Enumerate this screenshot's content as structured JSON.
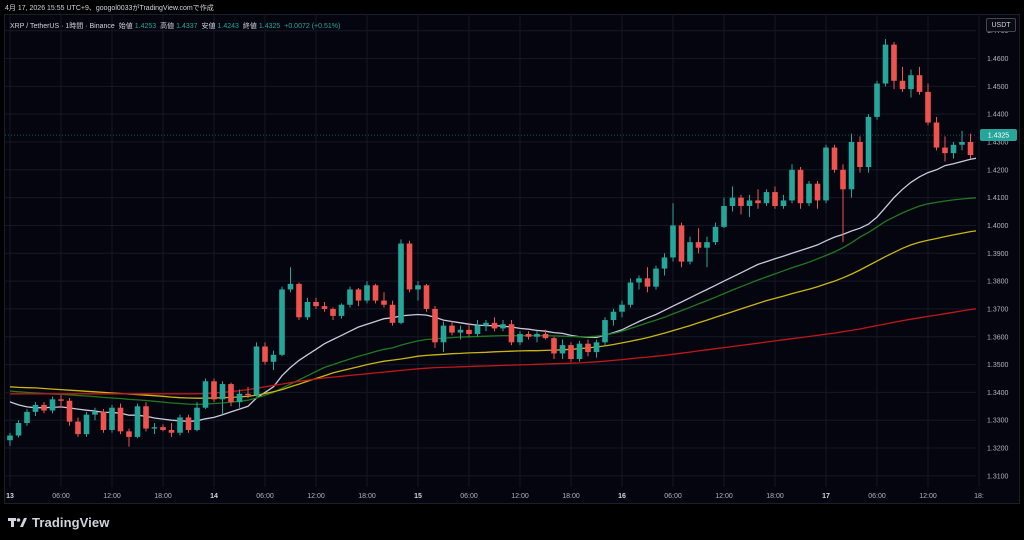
{
  "snapshot_line": "4月 17, 2026 15:55 UTC+9、googol0033がTradingView.comで作成",
  "legend": {
    "symbol": "XRP / TetherUS · 1時間 · Binance",
    "open_label": "始値",
    "open": "1.4253",
    "high_label": "高値",
    "high": "1.4337",
    "low_label": "安値",
    "low": "1.4243",
    "close_label": "終値",
    "close": "1.4325",
    "change": "+0.0072 (+0.51%)"
  },
  "currency_button": "USDT",
  "brand": "TradingView",
  "brand_icon": "tradingview-logo-icon",
  "colors": {
    "up": "#26a69a",
    "down": "#ef5350",
    "ma_white": "#c9c9dc",
    "ma_green": "#1f7a1f",
    "ma_yellow": "#c9b614",
    "ma_red": "#c01818",
    "background": "#05050f",
    "grid": "#141826"
  },
  "chart_data": {
    "type": "candlestick",
    "title": "",
    "xlabel": "",
    "ylabel": "",
    "grid": true,
    "current_price": "1.4325",
    "yticks": [
      "1.3100",
      "1.3200",
      "1.3300",
      "1.3400",
      "1.3500",
      "1.3600",
      "1.3700",
      "1.3800",
      "1.3900",
      "1.4000",
      "1.4100",
      "1.4200",
      "1.4300",
      "1.4400",
      "1.4500",
      "1.4600",
      "1.4700"
    ],
    "xticks": [
      {
        "label": "13",
        "bar": 0
      },
      {
        "label": "06:00",
        "bar": 6
      },
      {
        "label": "12:00",
        "bar": 12
      },
      {
        "label": "18:00",
        "bar": 18
      },
      {
        "label": "14",
        "bar": 24
      },
      {
        "label": "06:00",
        "bar": 30
      },
      {
        "label": "12:00",
        "bar": 36
      },
      {
        "label": "18:00",
        "bar": 42
      },
      {
        "label": "15",
        "bar": 48
      },
      {
        "label": "06:00",
        "bar": 54
      },
      {
        "label": "12:00",
        "bar": 60
      },
      {
        "label": "18:00",
        "bar": 66
      },
      {
        "label": "16",
        "bar": 72
      },
      {
        "label": "06:00",
        "bar": 78
      },
      {
        "label": "12:00",
        "bar": 84
      },
      {
        "label": "18:00",
        "bar": 90
      },
      {
        "label": "17",
        "bar": 96
      },
      {
        "label": "06:00",
        "bar": 102
      },
      {
        "label": "12:00",
        "bar": 108
      },
      {
        "label": "18:",
        "bar": 114
      }
    ],
    "ylim": [
      1.306,
      1.476
    ],
    "ohlc": [
      [
        1.3228,
        1.3255,
        1.3208,
        1.3245
      ],
      [
        1.3245,
        1.33,
        1.3238,
        1.329
      ],
      [
        1.329,
        1.334,
        1.328,
        1.333
      ],
      [
        1.333,
        1.3365,
        1.3315,
        1.3355
      ],
      [
        1.3355,
        1.3365,
        1.3325,
        1.3335
      ],
      [
        1.3335,
        1.3385,
        1.3325,
        1.3375
      ],
      [
        1.3375,
        1.339,
        1.3345,
        1.337
      ],
      [
        1.337,
        1.338,
        1.328,
        1.3295
      ],
      [
        1.3295,
        1.331,
        1.324,
        1.325
      ],
      [
        1.325,
        1.333,
        1.324,
        1.332
      ],
      [
        1.332,
        1.3345,
        1.33,
        1.333
      ],
      [
        1.333,
        1.334,
        1.3255,
        1.3265
      ],
      [
        1.3265,
        1.3355,
        1.3255,
        1.3345
      ],
      [
        1.3345,
        1.336,
        1.325,
        1.326
      ],
      [
        1.326,
        1.327,
        1.3205,
        1.324
      ],
      [
        1.324,
        1.336,
        1.3235,
        1.335
      ],
      [
        1.335,
        1.3365,
        1.326,
        1.327
      ],
      [
        1.327,
        1.329,
        1.325,
        1.3275
      ],
      [
        1.3275,
        1.3285,
        1.326,
        1.3265
      ],
      [
        1.3265,
        1.329,
        1.324,
        1.3255
      ],
      [
        1.3255,
        1.332,
        1.3245,
        1.331
      ],
      [
        1.331,
        1.332,
        1.3255,
        1.3265
      ],
      [
        1.3265,
        1.3365,
        1.326,
        1.3345
      ],
      [
        1.3345,
        1.345,
        1.334,
        1.344
      ],
      [
        1.344,
        1.345,
        1.3365,
        1.3375
      ],
      [
        1.3375,
        1.344,
        1.332,
        1.343
      ],
      [
        1.343,
        1.3435,
        1.335,
        1.3365
      ],
      [
        1.3365,
        1.341,
        1.3345,
        1.3395
      ],
      [
        1.3395,
        1.342,
        1.338,
        1.339
      ],
      [
        1.339,
        1.358,
        1.3385,
        1.3565
      ],
      [
        1.3565,
        1.358,
        1.35,
        1.351
      ],
      [
        1.351,
        1.355,
        1.348,
        1.3535
      ],
      [
        1.3535,
        1.378,
        1.353,
        1.377
      ],
      [
        1.377,
        1.385,
        1.376,
        1.379
      ],
      [
        1.379,
        1.3795,
        1.366,
        1.367
      ],
      [
        1.367,
        1.374,
        1.366,
        1.3725
      ],
      [
        1.3725,
        1.374,
        1.37,
        1.371
      ],
      [
        1.371,
        1.3725,
        1.369,
        1.37
      ],
      [
        1.37,
        1.3705,
        1.366,
        1.3675
      ],
      [
        1.3675,
        1.372,
        1.3665,
        1.3715
      ],
      [
        1.3715,
        1.378,
        1.3705,
        1.377
      ],
      [
        1.377,
        1.3775,
        1.371,
        1.373
      ],
      [
        1.373,
        1.38,
        1.372,
        1.3785
      ],
      [
        1.3785,
        1.379,
        1.372,
        1.373
      ],
      [
        1.373,
        1.376,
        1.3705,
        1.3715
      ],
      [
        1.3715,
        1.373,
        1.364,
        1.365
      ],
      [
        1.365,
        1.395,
        1.3645,
        1.3935
      ],
      [
        1.3935,
        1.3945,
        1.376,
        1.377
      ],
      [
        1.377,
        1.38,
        1.373,
        1.3785
      ],
      [
        1.3785,
        1.379,
        1.369,
        1.37
      ],
      [
        1.37,
        1.371,
        1.356,
        1.358
      ],
      [
        1.358,
        1.3655,
        1.3545,
        1.364
      ],
      [
        1.364,
        1.3655,
        1.3605,
        1.3615
      ],
      [
        1.3615,
        1.364,
        1.359,
        1.3625
      ],
      [
        1.3625,
        1.365,
        1.36,
        1.361
      ],
      [
        1.361,
        1.366,
        1.36,
        1.364
      ],
      [
        1.364,
        1.366,
        1.362,
        1.365
      ],
      [
        1.365,
        1.367,
        1.362,
        1.363
      ],
      [
        1.363,
        1.366,
        1.362,
        1.3645
      ],
      [
        1.3645,
        1.366,
        1.357,
        1.358
      ],
      [
        1.358,
        1.362,
        1.357,
        1.361
      ],
      [
        1.361,
        1.362,
        1.359,
        1.36
      ],
      [
        1.36,
        1.362,
        1.358,
        1.361
      ],
      [
        1.361,
        1.3625,
        1.359,
        1.3595
      ],
      [
        1.3595,
        1.36,
        1.352,
        1.354
      ],
      [
        1.354,
        1.359,
        1.352,
        1.357
      ],
      [
        1.357,
        1.358,
        1.351,
        1.352
      ],
      [
        1.352,
        1.3585,
        1.351,
        1.3575
      ],
      [
        1.3575,
        1.359,
        1.353,
        1.3545
      ],
      [
        1.3545,
        1.359,
        1.3525,
        1.358
      ],
      [
        1.358,
        1.367,
        1.357,
        1.366
      ],
      [
        1.366,
        1.37,
        1.364,
        1.369
      ],
      [
        1.369,
        1.373,
        1.367,
        1.3715
      ],
      [
        1.3715,
        1.381,
        1.3705,
        1.3795
      ],
      [
        1.3795,
        1.382,
        1.377,
        1.381
      ],
      [
        1.381,
        1.385,
        1.376,
        1.378
      ],
      [
        1.378,
        1.3855,
        1.377,
        1.3845
      ],
      [
        1.3845,
        1.39,
        1.382,
        1.3885
      ],
      [
        1.3885,
        1.408,
        1.387,
        1.4
      ],
      [
        1.4,
        1.401,
        1.385,
        1.387
      ],
      [
        1.387,
        1.396,
        1.386,
        1.394
      ],
      [
        1.394,
        1.399,
        1.39,
        1.392
      ],
      [
        1.392,
        1.396,
        1.385,
        1.394
      ],
      [
        1.394,
        1.401,
        1.393,
        1.3995
      ],
      [
        1.3995,
        1.41,
        1.399,
        1.407
      ],
      [
        1.407,
        1.414,
        1.405,
        1.41
      ],
      [
        1.41,
        1.411,
        1.404,
        1.407
      ],
      [
        1.407,
        1.411,
        1.403,
        1.409
      ],
      [
        1.409,
        1.413,
        1.406,
        1.408
      ],
      [
        1.408,
        1.413,
        1.407,
        1.412
      ],
      [
        1.412,
        1.414,
        1.406,
        1.407
      ],
      [
        1.407,
        1.411,
        1.406,
        1.409
      ],
      [
        1.409,
        1.422,
        1.408,
        1.42
      ],
      [
        1.42,
        1.421,
        1.406,
        1.408
      ],
      [
        1.408,
        1.416,
        1.407,
        1.415
      ],
      [
        1.415,
        1.416,
        1.406,
        1.409
      ],
      [
        1.409,
        1.429,
        1.408,
        1.428
      ],
      [
        1.428,
        1.429,
        1.419,
        1.42
      ],
      [
        1.42,
        1.422,
        1.394,
        1.413
      ],
      [
        1.413,
        1.433,
        1.41,
        1.43
      ],
      [
        1.43,
        1.432,
        1.419,
        1.421
      ],
      [
        1.421,
        1.44,
        1.419,
        1.439
      ],
      [
        1.439,
        1.452,
        1.438,
        1.451
      ],
      [
        1.451,
        1.467,
        1.45,
        1.465
      ],
      [
        1.465,
        1.466,
        1.449,
        1.452
      ],
      [
        1.452,
        1.457,
        1.448,
        1.449
      ],
      [
        1.449,
        1.456,
        1.446,
        1.454
      ],
      [
        1.454,
        1.457,
        1.447,
        1.448
      ],
      [
        1.448,
        1.451,
        1.436,
        1.437
      ],
      [
        1.437,
        1.439,
        1.427,
        1.428
      ],
      [
        1.428,
        1.432,
        1.423,
        1.426
      ],
      [
        1.426,
        1.43,
        1.424,
        1.429
      ],
      [
        1.429,
        1.434,
        1.427,
        1.43
      ],
      [
        1.43,
        1.433,
        1.424,
        1.4253
      ],
      [
        1.4253,
        1.4337,
        1.4243,
        1.4325
      ]
    ],
    "series": [
      {
        "color": "white",
        "values": [
          1.3366,
          1.3355,
          1.3348,
          1.3345,
          1.3345,
          1.3346,
          1.3348,
          1.3344,
          1.334,
          1.3336,
          1.3333,
          1.3328,
          1.3328,
          1.3325,
          1.3318,
          1.3318,
          1.3314,
          1.3308,
          1.3304,
          1.33,
          1.3298,
          1.3296,
          1.3298,
          1.3305,
          1.331,
          1.332,
          1.333,
          1.334,
          1.335,
          1.338,
          1.34,
          1.342,
          1.346,
          1.349,
          1.3515,
          1.3535,
          1.3555,
          1.3575,
          1.359,
          1.3605,
          1.362,
          1.3635,
          1.3645,
          1.3655,
          1.3665,
          1.3668,
          1.3675,
          1.3678,
          1.368,
          1.3678,
          1.367,
          1.366,
          1.3655,
          1.365,
          1.3645,
          1.3642,
          1.364,
          1.364,
          1.3638,
          1.3635,
          1.363,
          1.3627,
          1.3623,
          1.362,
          1.3615,
          1.3612,
          1.3605,
          1.36,
          1.3598,
          1.3598,
          1.3605,
          1.3615,
          1.3625,
          1.364,
          1.3655,
          1.3668,
          1.368,
          1.3695,
          1.371,
          1.3725,
          1.374,
          1.3755,
          1.377,
          1.3785,
          1.38,
          1.3815,
          1.383,
          1.3845,
          1.386,
          1.387,
          1.388,
          1.389,
          1.39,
          1.391,
          1.392,
          1.393,
          1.3945,
          1.3958,
          1.3968,
          1.398,
          1.399,
          1.4005,
          1.403,
          1.4065,
          1.41,
          1.413,
          1.4155,
          1.4175,
          1.419,
          1.42,
          1.4215,
          1.4222,
          1.423,
          1.4238,
          1.4243,
          1.4247,
          1.425
        ]
      },
      {
        "color": "green",
        "values": [
          1.3405,
          1.3402,
          1.34,
          1.3398,
          1.3396,
          1.3394,
          1.3393,
          1.3391,
          1.3389,
          1.3387,
          1.3385,
          1.3382,
          1.338,
          1.3378,
          1.3375,
          1.3373,
          1.3371,
          1.3368,
          1.3365,
          1.3362,
          1.336,
          1.3358,
          1.3357,
          1.3358,
          1.336,
          1.3362,
          1.3365,
          1.3368,
          1.3372,
          1.338,
          1.339,
          1.34,
          1.3415,
          1.343,
          1.3445,
          1.346,
          1.3475,
          1.349,
          1.35,
          1.351,
          1.352,
          1.353,
          1.3538,
          1.3547,
          1.3555,
          1.356,
          1.357,
          1.3578,
          1.3585,
          1.359,
          1.3592,
          1.3595,
          1.3597,
          1.3599,
          1.36,
          1.3601,
          1.3602,
          1.3603,
          1.3604,
          1.3604,
          1.3604,
          1.3604,
          1.3604,
          1.3604,
          1.3603,
          1.3602,
          1.3601,
          1.36,
          1.36,
          1.3602,
          1.3606,
          1.3612,
          1.362,
          1.363,
          1.364,
          1.365,
          1.366,
          1.367,
          1.3682,
          1.3694,
          1.3706,
          1.3718,
          1.373,
          1.3742,
          1.3755,
          1.3768,
          1.378,
          1.3792,
          1.3804,
          1.3815,
          1.3826,
          1.3837,
          1.3848,
          1.3858,
          1.3868,
          1.388,
          1.3892,
          1.3905,
          1.392,
          1.3938,
          1.3958,
          1.3975,
          1.3995,
          1.4015,
          1.403,
          1.4045,
          1.4058,
          1.407,
          1.4078,
          1.4083,
          1.4088,
          1.4092,
          1.4095,
          1.4098,
          1.41
        ]
      },
      {
        "color": "yellow",
        "values": [
          1.342,
          1.3418,
          1.3417,
          1.3416,
          1.3414,
          1.3412,
          1.341,
          1.3408,
          1.3406,
          1.3404,
          1.3402,
          1.34,
          1.3398,
          1.3396,
          1.3394,
          1.3392,
          1.339,
          1.3388,
          1.3386,
          1.3383,
          1.3381,
          1.338,
          1.3379,
          1.3379,
          1.338,
          1.3381,
          1.3382,
          1.3384,
          1.3386,
          1.339,
          1.3396,
          1.3402,
          1.341,
          1.342,
          1.343,
          1.344,
          1.345,
          1.346,
          1.347,
          1.3478,
          1.3485,
          1.3492,
          1.35,
          1.3506,
          1.3512,
          1.3516,
          1.352,
          1.3525,
          1.353,
          1.3533,
          1.3535,
          1.3537,
          1.3539,
          1.354,
          1.3542,
          1.3543,
          1.3544,
          1.3546,
          1.3547,
          1.3548,
          1.3549,
          1.355,
          1.355,
          1.3551,
          1.3552,
          1.3553,
          1.3555,
          1.3557,
          1.356,
          1.3563,
          1.3567,
          1.3572,
          1.3578,
          1.3584,
          1.359,
          1.3597,
          1.3605,
          1.3613,
          1.3622,
          1.3631,
          1.364,
          1.365,
          1.366,
          1.367,
          1.368,
          1.369,
          1.37,
          1.371,
          1.372,
          1.373,
          1.3738,
          1.3746,
          1.3755,
          1.3763,
          1.3771,
          1.378,
          1.379,
          1.38,
          1.3812,
          1.3825,
          1.384,
          1.3856,
          1.3872,
          1.3888,
          1.3903,
          1.3918,
          1.393,
          1.394,
          1.3947,
          1.3953,
          1.396,
          1.3966,
          1.3972,
          1.3978,
          1.3982
        ]
      },
      {
        "color": "red",
        "values": [
          1.3395,
          1.3395,
          1.3395,
          1.3395,
          1.3395,
          1.3395,
          1.3395,
          1.3395,
          1.3395,
          1.3395,
          1.3395,
          1.3395,
          1.3395,
          1.3395,
          1.3395,
          1.3395,
          1.3395,
          1.3395,
          1.3395,
          1.3395,
          1.3395,
          1.3395,
          1.3395,
          1.3396,
          1.3398,
          1.34,
          1.3403,
          1.3406,
          1.341,
          1.3415,
          1.342,
          1.3425,
          1.343,
          1.3435,
          1.344,
          1.3444,
          1.3448,
          1.3452,
          1.3455,
          1.3458,
          1.3461,
          1.3464,
          1.3467,
          1.347,
          1.3473,
          1.3476,
          1.3479,
          1.3482,
          1.3485,
          1.3487,
          1.3489,
          1.349,
          1.3491,
          1.3492,
          1.3493,
          1.3494,
          1.3495,
          1.3496,
          1.3497,
          1.3498,
          1.3499,
          1.35,
          1.3501,
          1.3502,
          1.3503,
          1.3504,
          1.3505,
          1.3506,
          1.3508,
          1.351,
          1.3512,
          1.3515,
          1.3518,
          1.3521,
          1.3524,
          1.3527,
          1.353,
          1.3533,
          1.3537,
          1.3541,
          1.3545,
          1.3549,
          1.3553,
          1.3557,
          1.3561,
          1.3565,
          1.3569,
          1.3573,
          1.3577,
          1.3581,
          1.3585,
          1.3589,
          1.3593,
          1.3597,
          1.3601,
          1.3605,
          1.3609,
          1.3613,
          1.3618,
          1.3623,
          1.3628,
          1.3634,
          1.364,
          1.3646,
          1.3652,
          1.3658,
          1.3663,
          1.3668,
          1.3673,
          1.3678,
          1.3683,
          1.3688,
          1.3693,
          1.3698,
          1.3702
        ]
      }
    ]
  }
}
